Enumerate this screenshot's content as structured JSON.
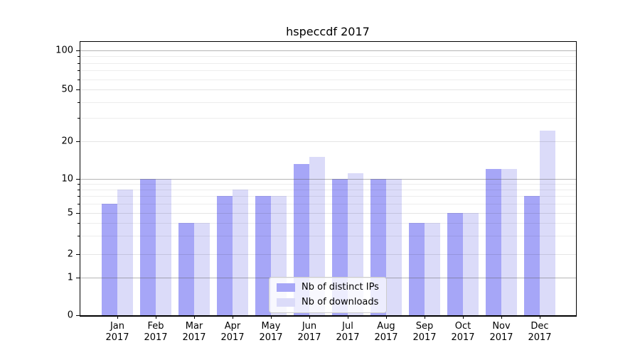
{
  "chart_data": {
    "type": "bar",
    "title": "hspeccdf 2017",
    "year_label": "2017",
    "categories": [
      "Jan",
      "Feb",
      "Mar",
      "Apr",
      "May",
      "Jun",
      "Jul",
      "Aug",
      "Sep",
      "Oct",
      "Nov",
      "Dec"
    ],
    "series": [
      {
        "name": "Nb of distinct IPs",
        "color": "#a6a6f7",
        "values": [
          6,
          10,
          4,
          7,
          7,
          13,
          10,
          10,
          4,
          5,
          12,
          7
        ]
      },
      {
        "name": "Nb of downloads",
        "color": "#dbdbf9",
        "values": [
          8,
          10,
          4,
          8,
          7,
          15,
          11,
          10,
          4,
          5,
          12,
          24
        ]
      }
    ],
    "xlabel": "",
    "ylabel": "",
    "y_axis": {
      "scale": "symlog-like",
      "tick_labels": [
        "0",
        "1",
        "2",
        "5",
        "10",
        "20",
        "50",
        "100"
      ],
      "ticks": [
        0,
        1,
        2,
        5,
        10,
        20,
        50,
        100
      ],
      "minor_ticks": [
        3,
        4,
        6,
        7,
        8,
        9,
        30,
        40,
        60,
        70,
        80,
        90
      ],
      "ylim": [
        0,
        115
      ]
    },
    "grid": true,
    "legend": {
      "position": "bottom-center",
      "entries": [
        "Nb of distinct IPs",
        "Nb of downloads"
      ]
    }
  }
}
